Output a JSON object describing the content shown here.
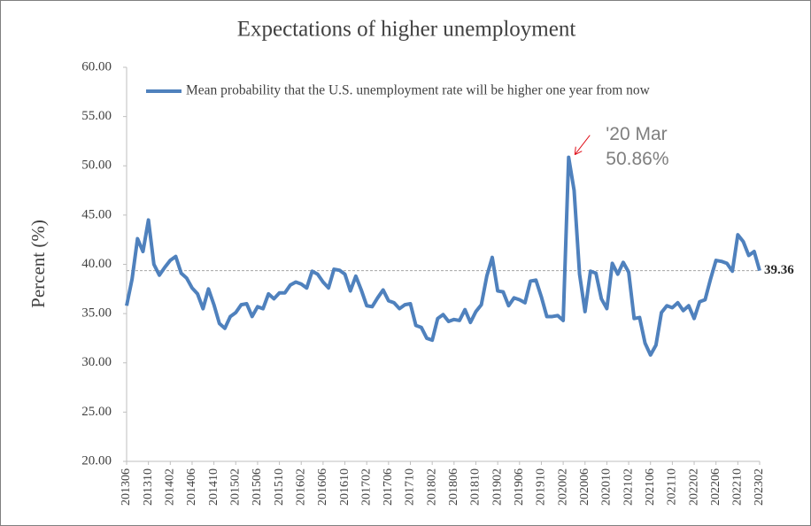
{
  "chart_data": {
    "type": "line",
    "title": "Expectations  of  higher  unemployment",
    "y_label": "Percent (%)",
    "categories": [
      "201306",
      null,
      null,
      null,
      "201310",
      null,
      null,
      null,
      "201402",
      null,
      null,
      null,
      "201406",
      null,
      null,
      null,
      "201410",
      null,
      null,
      null,
      "201502",
      null,
      null,
      null,
      "201506",
      null,
      null,
      null,
      "201510",
      null,
      null,
      null,
      "201602",
      null,
      null,
      null,
      "201606",
      null,
      null,
      null,
      "201610",
      null,
      null,
      null,
      "201702",
      null,
      null,
      null,
      "201706",
      null,
      null,
      null,
      "201710",
      null,
      null,
      null,
      "201802",
      null,
      null,
      null,
      "201806",
      null,
      null,
      null,
      "201810",
      null,
      null,
      null,
      "201902",
      null,
      null,
      null,
      "201906",
      null,
      null,
      null,
      "201910",
      null,
      null,
      null,
      "202002",
      null,
      null,
      null,
      "202006",
      null,
      null,
      null,
      "202010",
      null,
      null,
      null,
      "202102",
      null,
      null,
      null,
      "202106",
      null,
      null,
      null,
      "202110",
      null,
      null,
      null,
      "202202",
      null,
      null,
      null,
      "202206",
      null,
      null,
      null,
      "202210",
      null,
      null,
      null,
      "202302"
    ],
    "series": [
      {
        "name": "Mean probability that the U.S. unemployment rate will be higher one year from now",
        "color": "#4f81bd",
        "values": [
          35.8,
          38.5,
          42.6,
          41.3,
          44.5,
          40.0,
          38.9,
          39.7,
          40.4,
          40.8,
          39.1,
          38.6,
          37.6,
          37.0,
          35.5,
          37.5,
          35.9,
          34.0,
          33.5,
          34.7,
          35.1,
          35.9,
          36.0,
          34.7,
          35.7,
          35.5,
          37.0,
          36.5,
          37.1,
          37.1,
          37.9,
          38.2,
          38.0,
          37.6,
          39.3,
          39.0,
          38.2,
          37.6,
          39.5,
          39.4,
          39.0,
          37.3,
          38.8,
          37.4,
          35.8,
          35.7,
          36.6,
          37.4,
          36.3,
          36.1,
          35.5,
          35.9,
          36.0,
          33.8,
          33.6,
          32.5,
          32.3,
          34.5,
          34.9,
          34.2,
          34.4,
          34.3,
          35.4,
          34.1,
          35.2,
          35.9,
          38.8,
          40.7,
          37.3,
          37.2,
          35.8,
          36.6,
          36.4,
          36.1,
          38.3,
          38.4,
          36.7,
          34.7,
          34.7,
          34.8,
          34.3,
          50.86,
          47.5,
          39.0,
          35.2,
          39.3,
          39.1,
          36.5,
          35.5,
          40.1,
          39.0,
          40.2,
          39.2,
          34.5,
          34.6,
          32.0,
          30.8,
          31.8,
          35.1,
          35.8,
          35.6,
          36.1,
          35.3,
          35.8,
          34.5,
          36.2,
          36.4,
          38.5,
          40.4,
          40.3,
          40.1,
          39.3,
          43.0,
          42.3,
          40.9,
          41.3,
          39.36
        ]
      }
    ],
    "ylim": [
      20,
      60
    ],
    "yticks": [
      {
        "value": 20,
        "label": "20.00"
      },
      {
        "value": 25,
        "label": "25.00"
      },
      {
        "value": 30,
        "label": "30.00"
      },
      {
        "value": 35,
        "label": "35.00"
      },
      {
        "value": 40,
        "label": "40.00"
      },
      {
        "value": 45,
        "label": "45.00"
      },
      {
        "value": 50,
        "label": "50.00"
      },
      {
        "value": 55,
        "label": "55.00"
      },
      {
        "value": 60,
        "label": "60.00"
      }
    ],
    "grid": false,
    "legend": "top",
    "annotation": [
      "'20 Mar",
      "50.86%"
    ],
    "annotation_color": "#e0101a",
    "reference": {
      "value": 39.36,
      "label": "39.36"
    }
  }
}
